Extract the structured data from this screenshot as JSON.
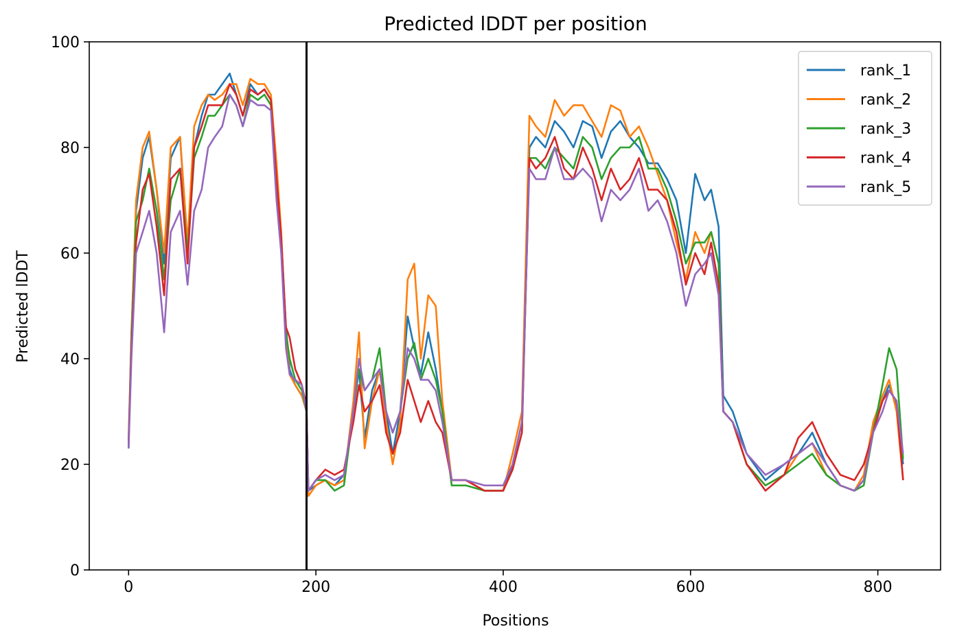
{
  "chart_data": {
    "type": "line",
    "title": "Predicted lDDT per position",
    "xlabel": "Positions",
    "ylabel": "Predicted lDDT",
    "xlim": [
      -42,
      867
    ],
    "ylim": [
      0,
      100
    ],
    "xticks": [
      0,
      200,
      400,
      600,
      800
    ],
    "yticks": [
      0,
      20,
      40,
      60,
      80,
      100
    ],
    "vline_x": 190,
    "legend_position": "upper right",
    "grid": false,
    "x": [
      0,
      3,
      8,
      15,
      22,
      30,
      38,
      45,
      55,
      63,
      70,
      78,
      85,
      92,
      100,
      108,
      115,
      122,
      130,
      138,
      145,
      152,
      158,
      163,
      168,
      172,
      178,
      185,
      190,
      192,
      200,
      210,
      220,
      230,
      240,
      246,
      252,
      260,
      268,
      275,
      282,
      290,
      298,
      305,
      312,
      320,
      328,
      335,
      345,
      360,
      380,
      400,
      410,
      420,
      428,
      435,
      445,
      455,
      465,
      475,
      485,
      495,
      505,
      515,
      525,
      535,
      545,
      555,
      565,
      575,
      585,
      595,
      605,
      615,
      622,
      630,
      635,
      645,
      660,
      680,
      700,
      715,
      730,
      745,
      760,
      775,
      785,
      795,
      805,
      812,
      820,
      827
    ],
    "series": [
      {
        "name": "rank_1",
        "color": "#1f77b4",
        "values": [
          23,
          45,
          68,
          78,
          82,
          72,
          58,
          78,
          82,
          60,
          80,
          86,
          90,
          90,
          92,
          94,
          90,
          86,
          92,
          90,
          91,
          89,
          75,
          63,
          46,
          38,
          35,
          33,
          30,
          15,
          16,
          17,
          16,
          18,
          30,
          38,
          25,
          34,
          38,
          30,
          22,
          30,
          48,
          42,
          37,
          45,
          38,
          30,
          17,
          17,
          15,
          15,
          20,
          28,
          80,
          82,
          80,
          85,
          83,
          80,
          85,
          84,
          78,
          83,
          85,
          82,
          80,
          77,
          77,
          74,
          70,
          60,
          75,
          70,
          72,
          65,
          33,
          30,
          22,
          17,
          20,
          22,
          26,
          20,
          16,
          15,
          17,
          27,
          32,
          35,
          31,
          20
        ]
      },
      {
        "name": "rank_2",
        "color": "#ff7f0e",
        "values": [
          25,
          44,
          70,
          80,
          83,
          72,
          60,
          80,
          82,
          62,
          84,
          88,
          90,
          89,
          90,
          92,
          92,
          88,
          93,
          92,
          92,
          90,
          77,
          64,
          44,
          37,
          35,
          33,
          30,
          14,
          16,
          17,
          16,
          17,
          32,
          45,
          23,
          32,
          38,
          28,
          20,
          28,
          55,
          58,
          40,
          52,
          50,
          32,
          17,
          17,
          15,
          15,
          22,
          30,
          86,
          84,
          82,
          89,
          86,
          88,
          88,
          85,
          82,
          88,
          87,
          82,
          84,
          80,
          75,
          70,
          62,
          55,
          64,
          60,
          64,
          58,
          30,
          28,
          20,
          16,
          18,
          22,
          24,
          18,
          16,
          15,
          18,
          28,
          33,
          36,
          30,
          17
        ]
      },
      {
        "name": "rank_3",
        "color": "#2ca02c",
        "values": [
          24,
          43,
          66,
          70,
          76,
          68,
          55,
          70,
          76,
          60,
          78,
          82,
          86,
          86,
          88,
          90,
          88,
          84,
          90,
          89,
          90,
          88,
          72,
          62,
          45,
          40,
          36,
          34,
          30,
          15,
          17,
          17,
          15,
          16,
          30,
          38,
          34,
          36,
          42,
          30,
          26,
          30,
          40,
          43,
          36,
          40,
          36,
          30,
          16,
          16,
          15,
          15,
          19,
          26,
          78,
          78,
          76,
          80,
          78,
          76,
          82,
          80,
          74,
          78,
          80,
          80,
          82,
          76,
          76,
          72,
          66,
          58,
          62,
          62,
          64,
          58,
          30,
          28,
          20,
          16,
          18,
          20,
          22,
          18,
          16,
          15,
          16,
          26,
          35,
          42,
          38,
          21
        ]
      },
      {
        "name": "rank_4",
        "color": "#d62728",
        "values": [
          24,
          42,
          62,
          72,
          75,
          65,
          52,
          74,
          76,
          58,
          80,
          84,
          88,
          88,
          88,
          92,
          90,
          86,
          91,
          90,
          91,
          89,
          74,
          63,
          46,
          44,
          38,
          35,
          31,
          15,
          17,
          19,
          18,
          19,
          28,
          35,
          30,
          32,
          35,
          26,
          22,
          26,
          36,
          32,
          28,
          32,
          28,
          26,
          17,
          17,
          15,
          15,
          19,
          26,
          78,
          76,
          78,
          82,
          76,
          74,
          80,
          76,
          70,
          76,
          72,
          74,
          78,
          72,
          72,
          70,
          64,
          54,
          60,
          56,
          62,
          54,
          30,
          28,
          20,
          15,
          18,
          25,
          28,
          22,
          18,
          17,
          20,
          26,
          32,
          34,
          32,
          17
        ]
      },
      {
        "name": "rank_5",
        "color": "#9467bd",
        "values": [
          23,
          40,
          60,
          64,
          68,
          60,
          45,
          64,
          68,
          54,
          68,
          72,
          80,
          82,
          84,
          90,
          88,
          84,
          89,
          88,
          88,
          87,
          70,
          60,
          42,
          37,
          36,
          35,
          30,
          15,
          17,
          18,
          17,
          18,
          30,
          40,
          34,
          36,
          38,
          30,
          26,
          30,
          42,
          40,
          36,
          36,
          34,
          28,
          17,
          17,
          16,
          16,
          20,
          28,
          76,
          74,
          74,
          80,
          74,
          74,
          76,
          74,
          66,
          72,
          70,
          72,
          76,
          68,
          70,
          66,
          60,
          50,
          56,
          58,
          60,
          52,
          30,
          28,
          22,
          18,
          20,
          22,
          24,
          20,
          16,
          15,
          17,
          26,
          30,
          34,
          32,
          22
        ]
      }
    ]
  }
}
